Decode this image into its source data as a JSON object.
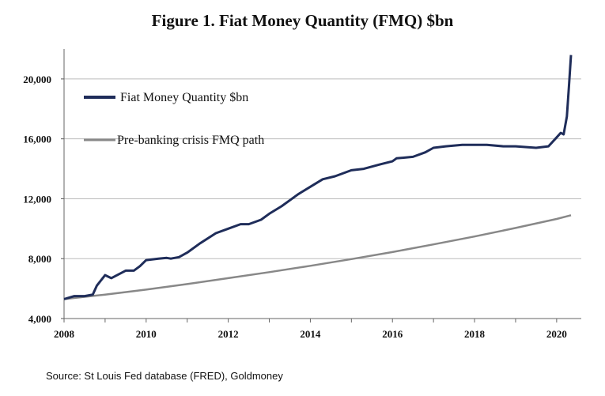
{
  "chart_data": {
    "type": "line",
    "title": "Figure 1. Fiat Money Quantity (FMQ)  $bn",
    "source": "Source: St Louis Fed  database (FRED), Goldmoney",
    "xlabel": "",
    "ylabel": "",
    "xlim": [
      2008,
      2020.6
    ],
    "ylim": [
      4000,
      22000
    ],
    "xticks": [
      2008,
      2010,
      2012,
      2014,
      2016,
      2018,
      2020
    ],
    "xtick_labels": [
      "2008",
      "2010",
      "2012",
      "2014",
      "2016",
      "2018",
      "2020"
    ],
    "yticks": [
      4000,
      8000,
      12000,
      16000,
      20000
    ],
    "ytick_labels": [
      "4,000",
      "8,000",
      "12,000",
      "16,000",
      "20,000"
    ],
    "grid": "horizontal",
    "legend_position": "top-left",
    "series": [
      {
        "name": "Fiat Money Quantity $bn",
        "color": "#1f2d5a",
        "x": [
          2008,
          2008.25,
          2008.5,
          2008.7,
          2008.8,
          2009.0,
          2009.15,
          2009.5,
          2009.7,
          2009.85,
          2010.0,
          2010.3,
          2010.5,
          2010.6,
          2010.8,
          2011.0,
          2011.3,
          2011.7,
          2012.0,
          2012.3,
          2012.5,
          2012.8,
          2013.0,
          2013.3,
          2013.7,
          2014.0,
          2014.3,
          2014.6,
          2015.0,
          2015.3,
          2015.7,
          2016.0,
          2016.1,
          2016.5,
          2016.8,
          2017.0,
          2017.3,
          2017.7,
          2018.0,
          2018.3,
          2018.7,
          2019.0,
          2019.5,
          2019.8,
          2020.0,
          2020.1,
          2020.17,
          2020.25,
          2020.3,
          2020.35
        ],
        "values": [
          5300,
          5500,
          5500,
          5600,
          6200,
          6900,
          6700,
          7200,
          7200,
          7500,
          7900,
          8000,
          8050,
          8000,
          8100,
          8400,
          9000,
          9700,
          10000,
          10300,
          10300,
          10600,
          11000,
          11500,
          12300,
          12800,
          13300,
          13500,
          13900,
          14000,
          14300,
          14500,
          14700,
          14800,
          15100,
          15400,
          15500,
          15600,
          15600,
          15600,
          15500,
          15500,
          15400,
          15500,
          16100,
          16400,
          16300,
          17500,
          19500,
          21600
        ]
      },
      {
        "name": "Pre-banking crisis FMQ path",
        "color": "#888888",
        "x": [
          2008,
          2009,
          2010,
          2011,
          2012,
          2013,
          2014,
          2015,
          2016,
          2017,
          2018,
          2019,
          2020,
          2020.35
        ],
        "values": [
          5300,
          5600,
          5930,
          6300,
          6700,
          7100,
          7520,
          7970,
          8440,
          8950,
          9480,
          10050,
          10650,
          10900
        ]
      }
    ]
  }
}
